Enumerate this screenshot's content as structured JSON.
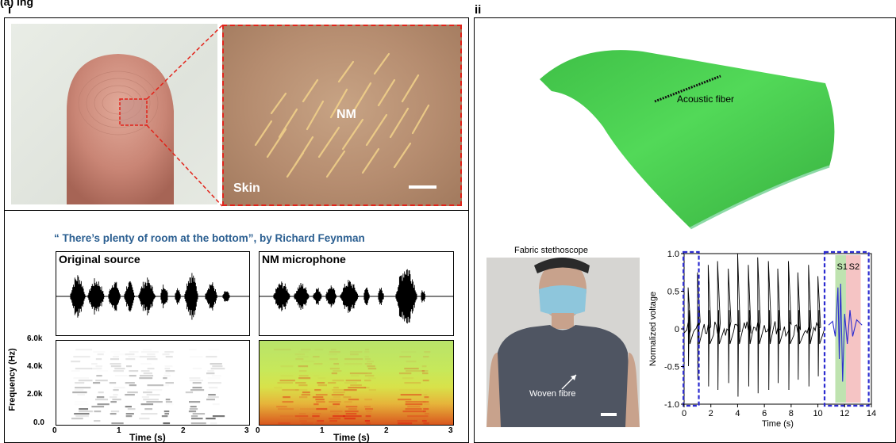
{
  "figure": {
    "top_label": "(a)           ing",
    "panel_i": "i",
    "panel_ii": "ii"
  },
  "panel_i": {
    "finger": {
      "zoom_nm": "NM",
      "zoom_skin": "Skin"
    },
    "quote": "“ There’s plenty of room at the bottom”, by Richard Feynman",
    "colors": {
      "quote": "#2b5f91",
      "dash": "#e2231a"
    },
    "waveforms": [
      {
        "title": "Original source"
      },
      {
        "title": "NM microphone"
      }
    ],
    "spectrogram": {
      "ylabel": "Frequency (Hz)",
      "yticks": [
        "6.0k",
        "4.0k",
        "2.0k",
        "0.0"
      ],
      "xticks_left": [
        "0",
        "1",
        "2",
        "3"
      ],
      "xticks_right": [
        "0",
        "1",
        "2",
        "3"
      ],
      "xlabel": "Time (s)"
    }
  },
  "panel_ii": {
    "fabric_label": "Acoustic fiber",
    "fabric_color": "#44d34a",
    "stethoscope_title": "Fabric stethoscope",
    "woven_label": "Woven fibre",
    "chart_data": {
      "type": "line",
      "xlabel": "Time (s)",
      "ylabel": "Normalized voltage",
      "xlim": [
        0,
        14
      ],
      "ylim": [
        -1.0,
        1.0
      ],
      "xticks": [
        "0",
        "2",
        "4",
        "6",
        "8",
        "10",
        "12",
        "14"
      ],
      "yticks": [
        "1.0",
        "0.5",
        "0",
        "-0.5",
        "-1.0"
      ],
      "annotations": [
        "S1",
        "S2"
      ],
      "beats_x": [
        0.3,
        1.0,
        1.8,
        2.5,
        3.3,
        4.0,
        4.8,
        5.5,
        6.3,
        7.0,
        7.8,
        8.5,
        9.3,
        10.0
      ],
      "beat_amp": [
        0.55,
        0.75,
        0.85,
        0.9,
        0.8,
        1.0,
        0.85,
        0.95,
        0.9,
        0.8,
        0.9,
        0.75,
        0.85,
        0.7
      ],
      "colors": {
        "trace": "#000000",
        "zoom_trace": "#2b2bd0",
        "box": "#2b2bd0",
        "s1_band": "#bfe3b0",
        "s2_band": "#f5c4c4"
      }
    }
  }
}
